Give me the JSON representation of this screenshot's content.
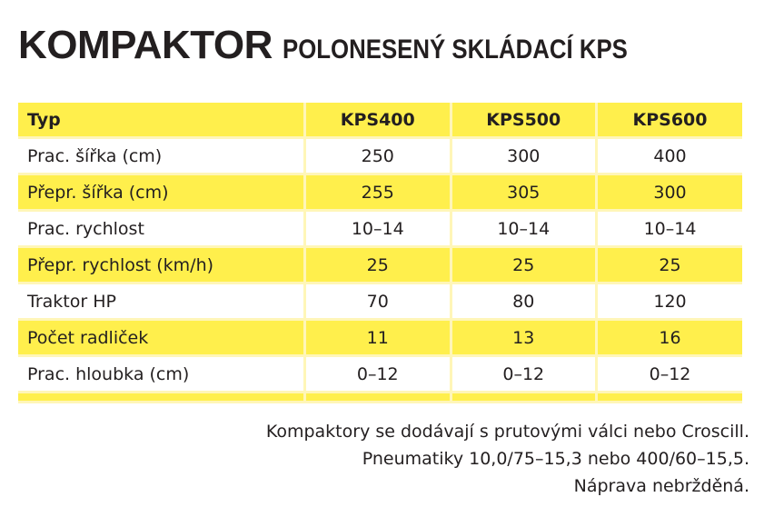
{
  "title": {
    "main": "KOMPAKTOR",
    "sub": "POLONESENÝ SKLÁDACÍ KPS"
  },
  "colors": {
    "row_highlight": "#ffef4c",
    "separator": "#fff6b8",
    "text": "#231f20"
  },
  "table": {
    "header": {
      "label": "Typ",
      "models": [
        "KPS400",
        "KPS500",
        "KPS600"
      ]
    },
    "rows": [
      {
        "label": "Prac. šířka (cm)",
        "values": [
          "250",
          "300",
          "400"
        ]
      },
      {
        "label": "Přepr. šířka (cm)",
        "values": [
          "255",
          "305",
          "300"
        ]
      },
      {
        "label": "Prac. rychlost",
        "values": [
          "10–14",
          "10–14",
          "10–14"
        ]
      },
      {
        "label": "Přepr. rychlost (km/h)",
        "values": [
          "25",
          "25",
          "25"
        ]
      },
      {
        "label": "Traktor HP",
        "values": [
          "70",
          "80",
          "120"
        ]
      },
      {
        "label": "Počet radliček",
        "values": [
          "11",
          "13",
          "16"
        ]
      },
      {
        "label": "Prac. hloubka (cm)",
        "values": [
          "0–12",
          "0–12",
          "0–12"
        ]
      }
    ]
  },
  "notes": [
    "Kompaktory se dodávají s prutovými válci nebo Croscill.",
    "Pneumatiky 10,0/75–15,3 nebo 400/60–15,5.",
    "Náprava nebržděná."
  ]
}
